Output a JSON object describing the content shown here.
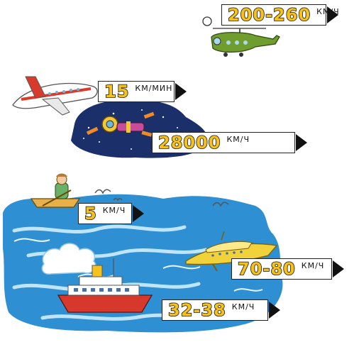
{
  "labels": {
    "helicopter": {
      "value": "200-260",
      "unit": "КМ/Ч"
    },
    "airplane": {
      "value": "15",
      "unit": "КМ/МИН"
    },
    "spaceship": {
      "value": "28000",
      "unit": "КМ/Ч"
    },
    "rowboat": {
      "value": "5",
      "unit": "КМ/Ч"
    },
    "hydrofoil": {
      "value": "70-80",
      "unit": "КМ/Ч"
    },
    "ship": {
      "value": "32-38",
      "unit": "КМ/Ч"
    }
  },
  "colors": {
    "sea": "#2f8fd3",
    "sea_light": "#7cc4ee",
    "space": "#1b2f6b",
    "label_fill": "#f5c21b",
    "helicopter": "#6f9e2e",
    "airplane_stripe": "#d83b2b",
    "hydrofoil": "#f2d23a",
    "ship_hull": "#d7382c"
  },
  "icons": [
    "helicopter-icon",
    "airplane-icon",
    "spaceship-icon",
    "rowboat-icon",
    "hydrofoil-icon",
    "ship-icon",
    "seagull-icon",
    "cloud-icon"
  ]
}
